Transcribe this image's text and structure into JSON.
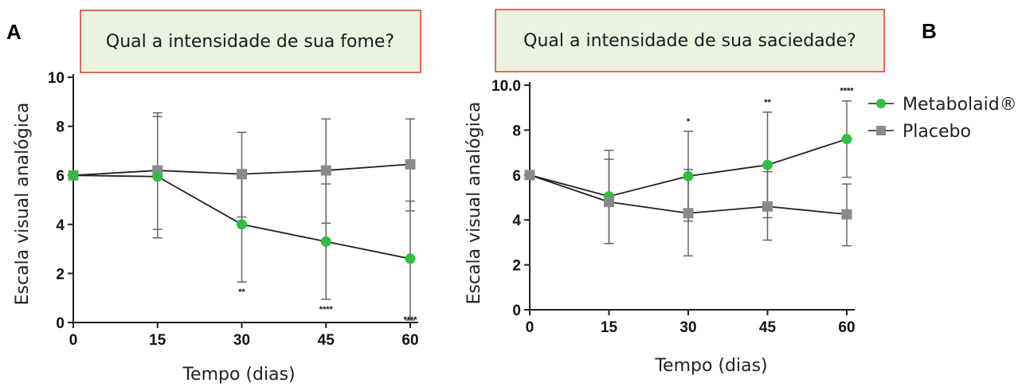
{
  "chart_data": [
    {
      "type": "line",
      "panel_label": "A",
      "question": "Qual a intensidade de sua fome?",
      "xlabel": "Tempo (dias)",
      "ylabel": "Escala visual analógica",
      "x": [
        0,
        15,
        30,
        45,
        60
      ],
      "xticks": [
        "0",
        "15",
        "30",
        "45",
        "60"
      ],
      "yticks": [
        "0",
        "2",
        "4",
        "6",
        "8",
        "10"
      ],
      "xlim": [
        0,
        60
      ],
      "ylim": [
        0,
        10
      ],
      "series": [
        {
          "name": "Placebo",
          "color": "#8a8a8a",
          "marker": "square",
          "values": [
            6.0,
            6.2,
            6.05,
            6.2,
            6.45
          ],
          "err_low": [
            6.0,
            3.45,
            4.3,
            4.05,
            4.55
          ],
          "err_high": [
            6.0,
            8.55,
            7.75,
            8.3,
            8.3
          ]
        },
        {
          "name": "Metabolaid®",
          "color": "#2fbf3f",
          "marker": "circle",
          "values": [
            6.0,
            5.95,
            4.0,
            3.3,
            2.6
          ],
          "err_low": [
            6.0,
            3.8,
            1.65,
            0.95,
            0.1
          ],
          "err_high": [
            6.0,
            8.4,
            6.1,
            5.65,
            4.95
          ]
        }
      ],
      "annotations": [
        {
          "x": 30,
          "text": "**"
        },
        {
          "x": 45,
          "text": "****"
        },
        {
          "x": 60,
          "text": "****"
        }
      ]
    },
    {
      "type": "line",
      "panel_label": "B",
      "question": "Qual a intensidade de sua saciedade?",
      "xlabel": "Tempo (dias)",
      "ylabel": "Escala visual analógica",
      "x": [
        0,
        15,
        30,
        45,
        60
      ],
      "xticks": [
        "0",
        "15",
        "30",
        "45",
        "60"
      ],
      "yticks": [
        "0",
        "2",
        "4",
        "6",
        "8",
        "10.0"
      ],
      "xlim": [
        0,
        60
      ],
      "ylim": [
        0,
        10
      ],
      "legend": "right",
      "series": [
        {
          "name": "Metabolaid®",
          "color": "#2fbf3f",
          "marker": "circle",
          "values": [
            6.0,
            5.05,
            5.95,
            6.45,
            7.6
          ],
          "err_low": [
            6.0,
            2.95,
            3.95,
            4.1,
            5.9
          ],
          "err_high": [
            6.0,
            7.1,
            7.95,
            8.8,
            9.3
          ]
        },
        {
          "name": "Placebo",
          "color": "#8a8a8a",
          "marker": "square",
          "values": [
            6.0,
            4.8,
            4.3,
            4.6,
            4.25
          ],
          "err_low": [
            6.0,
            2.95,
            2.4,
            3.1,
            2.85
          ],
          "err_high": [
            6.0,
            6.7,
            6.25,
            6.15,
            5.6
          ]
        }
      ],
      "annotations": [
        {
          "x": 30,
          "text": "*"
        },
        {
          "x": 45,
          "text": "**"
        },
        {
          "x": 60,
          "text": "****"
        }
      ],
      "legend_entries": [
        "Metabolaid®",
        "Placebo"
      ]
    }
  ]
}
